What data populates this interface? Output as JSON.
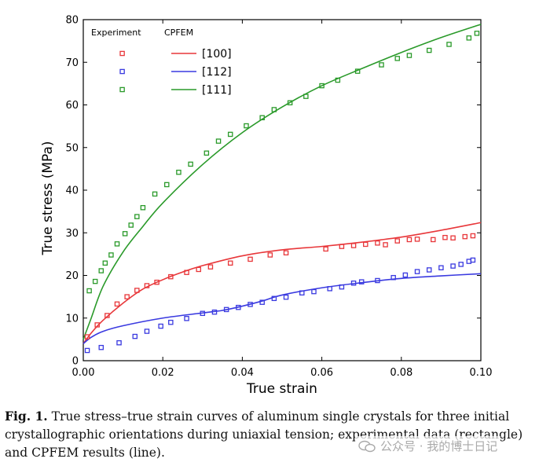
{
  "chart_data": {
    "type": "line",
    "xlabel": "True strain",
    "ylabel": "True stress (MPa)",
    "xlim": [
      0.0,
      0.1
    ],
    "ylim": [
      0,
      80
    ],
    "xticks": [
      "0.00",
      "0.02",
      "0.04",
      "0.06",
      "0.08",
      "0.10"
    ],
    "yticks": [
      "0",
      "10",
      "20",
      "30",
      "40",
      "50",
      "60",
      "70",
      "80"
    ],
    "legend": {
      "position": "top-left",
      "experiment_header": "Experiment",
      "cpfem_header": "CPFEM",
      "entries": [
        "[100]",
        "[112]",
        "[111]"
      ]
    },
    "series": [
      {
        "name": "[100]",
        "color": "#e8373a",
        "experiment": {
          "x": [
            0.001,
            0.0035,
            0.006,
            0.0085,
            0.011,
            0.0135,
            0.016,
            0.0185,
            0.022,
            0.026,
            0.029,
            0.032,
            0.037,
            0.042,
            0.047,
            0.051,
            0.061,
            0.065,
            0.068,
            0.071,
            0.074,
            0.076,
            0.079,
            0.082,
            0.084,
            0.088,
            0.091,
            0.093,
            0.096,
            0.098
          ],
          "y": [
            5.6,
            8.4,
            10.6,
            13.3,
            15.0,
            16.5,
            17.6,
            18.4,
            19.7,
            20.7,
            21.4,
            22.0,
            22.9,
            23.8,
            24.8,
            25.3,
            26.2,
            26.8,
            27.0,
            27.3,
            27.6,
            27.2,
            28.1,
            28.4,
            28.5,
            28.4,
            28.9,
            28.8,
            29.1,
            29.3
          ]
        },
        "cpfem": {
          "x": [
            0.0,
            0.002,
            0.005,
            0.01,
            0.015,
            0.02,
            0.025,
            0.03,
            0.04,
            0.05,
            0.06,
            0.07,
            0.08,
            0.09,
            0.1
          ],
          "y": [
            4.0,
            6.5,
            9.5,
            13.5,
            16.8,
            19.0,
            20.8,
            22.3,
            24.6,
            26.0,
            26.8,
            27.8,
            29.0,
            30.6,
            32.4
          ]
        }
      },
      {
        "name": "[112]",
        "color": "#3a3ae0",
        "experiment": {
          "x": [
            0.001,
            0.0045,
            0.009,
            0.013,
            0.016,
            0.0195,
            0.022,
            0.026,
            0.03,
            0.033,
            0.036,
            0.039,
            0.042,
            0.045,
            0.048,
            0.051,
            0.055,
            0.058,
            0.062,
            0.065,
            0.068,
            0.07,
            0.074,
            0.078,
            0.081,
            0.084,
            0.087,
            0.09,
            0.093,
            0.095,
            0.097,
            0.098
          ],
          "y": [
            2.4,
            3.1,
            4.2,
            5.7,
            6.9,
            8.1,
            9.0,
            9.9,
            11.1,
            11.4,
            12.0,
            12.5,
            13.2,
            13.7,
            14.6,
            14.9,
            15.9,
            16.2,
            16.9,
            17.3,
            18.2,
            18.5,
            18.8,
            19.5,
            20.1,
            20.9,
            21.3,
            21.8,
            22.2,
            22.6,
            23.3,
            23.6
          ]
        },
        "cpfem": {
          "x": [
            0.0,
            0.002,
            0.005,
            0.01,
            0.02,
            0.03,
            0.035,
            0.04,
            0.045,
            0.05,
            0.06,
            0.07,
            0.08,
            0.09,
            0.1
          ],
          "y": [
            4.0,
            5.5,
            6.9,
            8.2,
            10.0,
            11.2,
            11.8,
            12.8,
            14.0,
            15.4,
            17.1,
            18.3,
            19.3,
            19.9,
            20.4
          ]
        }
      },
      {
        "name": "[111]",
        "color": "#2a9a2a",
        "experiment": {
          "x": [
            0.0015,
            0.003,
            0.0045,
            0.0055,
            0.007,
            0.0085,
            0.0105,
            0.012,
            0.0135,
            0.015,
            0.018,
            0.021,
            0.024,
            0.027,
            0.031,
            0.034,
            0.037,
            0.041,
            0.045,
            0.048,
            0.052,
            0.056,
            0.06,
            0.064,
            0.069,
            0.075,
            0.079,
            0.082,
            0.087,
            0.092,
            0.097,
            0.099
          ],
          "y": [
            16.4,
            18.6,
            21.1,
            22.9,
            24.8,
            27.4,
            29.8,
            31.8,
            33.8,
            35.9,
            39.1,
            41.3,
            44.2,
            46.1,
            48.7,
            51.5,
            53.1,
            55.1,
            57.0,
            58.9,
            60.5,
            62.0,
            64.5,
            65.8,
            67.9,
            69.4,
            70.9,
            71.6,
            72.8,
            74.2,
            75.7,
            76.8
          ]
        },
        "cpfem": {
          "x": [
            0.0,
            0.002,
            0.005,
            0.01,
            0.015,
            0.02,
            0.03,
            0.04,
            0.05,
            0.06,
            0.07,
            0.08,
            0.09,
            0.1
          ],
          "y": [
            5.0,
            10.0,
            17.5,
            25.5,
            31.5,
            37.0,
            46.0,
            53.5,
            59.5,
            64.5,
            68.5,
            72.3,
            75.8,
            78.9
          ]
        }
      }
    ]
  },
  "caption": {
    "label": "Fig. 1.",
    "text": " True stress–true strain curves of aluminum single crystals for three initial crystallographic orientations during uniaxial tension; experimental data (rectangle) and CPFEM results (line)."
  },
  "watermark": {
    "text": "公众号 · 我的博士日记"
  }
}
